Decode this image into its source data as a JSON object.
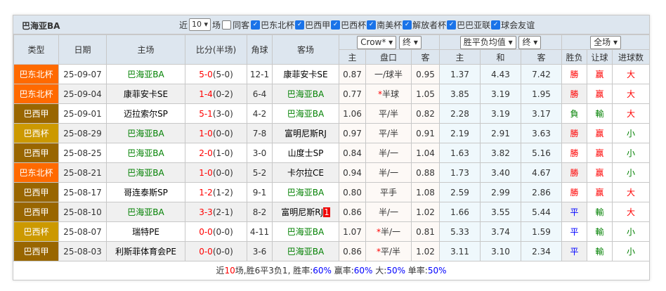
{
  "title": "巴海亚BA",
  "filters": {
    "prefix": "近",
    "count": "10",
    "suffix": "场",
    "same_venue": "同客",
    "competitions": [
      "巴东北杯",
      "巴西甲",
      "巴西杯",
      "南美杯",
      "解放者杯",
      "巴巴亚联",
      "球会友谊"
    ]
  },
  "headers": {
    "type": "类型",
    "date": "日期",
    "home": "主场",
    "score": "比分(半场)",
    "corner": "角球",
    "away": "客场",
    "company": "Crow*",
    "stage1": "终",
    "odds_type": "胜平负均值",
    "stage2": "终",
    "range": "全场",
    "h_home": "主",
    "h_line": "盘口",
    "h_away": "客",
    "o_home": "主",
    "o_draw": "和",
    "o_away": "客",
    "r_wl": "胜负",
    "r_hc": "让球",
    "r_goals": "进球数"
  },
  "colors": {
    "巴东北杯": "#ff6a00",
    "巴西甲": "#996600",
    "巴西杯": "#cc9900"
  },
  "rows": [
    {
      "type": "巴东北杯",
      "date": "25-09-07",
      "home": "巴海亚BA",
      "home_hl": true,
      "ft": "5-0",
      "ht": "(5-0)",
      "corner": "12-1",
      "away": "康菲安卡SE",
      "away_hl": false,
      "hh": "0.87",
      "hl": "一/球半",
      "ha": "0.95",
      "oh": "1.37",
      "od": "4.43",
      "oa": "7.42",
      "wl": "勝",
      "hc": "赢",
      "gl": "大"
    },
    {
      "type": "巴东北杯",
      "date": "25-09-04",
      "home": "康菲安卡SE",
      "home_hl": false,
      "ft": "1-4",
      "ht": "(0-2)",
      "corner": "6-4",
      "away": "巴海亚BA",
      "away_hl": true,
      "hh": "0.77",
      "hl_star": "*",
      "hl": "半球",
      "ha": "1.05",
      "oh": "3.85",
      "od": "3.19",
      "oa": "1.95",
      "wl": "勝",
      "hc": "赢",
      "gl": "大"
    },
    {
      "type": "巴西甲",
      "date": "25-09-01",
      "home": "迈拉索尔SP",
      "home_hl": false,
      "ft": "5-1",
      "ht": "(3-0)",
      "corner": "4-2",
      "away": "巴海亚BA",
      "away_hl": true,
      "hh": "1.06",
      "hl": "平/半",
      "ha": "0.82",
      "oh": "2.28",
      "od": "3.19",
      "oa": "3.17",
      "wl": "負",
      "hc": "輸",
      "gl": "大"
    },
    {
      "type": "巴西杯",
      "date": "25-08-29",
      "home": "巴海亚BA",
      "home_hl": true,
      "ft": "1-0",
      "ht": "(0-0)",
      "corner": "7-8",
      "away": "富明尼斯RJ",
      "away_hl": false,
      "hh": "0.97",
      "hl": "平/半",
      "ha": "0.91",
      "oh": "2.19",
      "od": "2.91",
      "oa": "3.63",
      "wl": "勝",
      "hc": "赢",
      "gl": "小"
    },
    {
      "type": "巴西甲",
      "date": "25-08-25",
      "home": "巴海亚BA",
      "home_hl": true,
      "ft": "2-0",
      "ht": "(1-0)",
      "corner": "3-0",
      "away": "山度士SP",
      "away_hl": false,
      "hh": "0.84",
      "hl": "半/一",
      "ha": "1.04",
      "oh": "1.63",
      "od": "3.82",
      "oa": "5.16",
      "wl": "勝",
      "hc": "赢",
      "gl": "小"
    },
    {
      "type": "巴东北杯",
      "date": "25-08-21",
      "home": "巴海亚BA",
      "home_hl": true,
      "ft": "1-0",
      "ht": "(0-0)",
      "corner": "5-2",
      "away": "卡尔拉CE",
      "away_hl": false,
      "hh": "0.94",
      "hl": "半/一",
      "ha": "0.88",
      "oh": "1.73",
      "od": "3.40",
      "oa": "4.67",
      "wl": "勝",
      "hc": "赢",
      "gl": "小"
    },
    {
      "type": "巴西甲",
      "date": "25-08-17",
      "home": "哥连泰斯SP",
      "home_hl": false,
      "ft": "1-2",
      "ht": "(1-2)",
      "corner": "9-1",
      "away": "巴海亚BA",
      "away_hl": true,
      "hh": "0.80",
      "hl": "平手",
      "ha": "1.08",
      "oh": "2.59",
      "od": "2.99",
      "oa": "2.86",
      "wl": "勝",
      "hc": "赢",
      "gl": "大"
    },
    {
      "type": "巴西甲",
      "date": "25-08-10",
      "home": "巴海亚BA",
      "home_hl": true,
      "ft": "3-3",
      "ht": "(2-1)",
      "corner": "8-2",
      "away": "富明尼斯RJ",
      "away_badge": "1",
      "away_hl": false,
      "hh": "0.86",
      "hl": "半/一",
      "ha": "1.02",
      "oh": "1.66",
      "od": "3.55",
      "oa": "5.44",
      "wl": "平",
      "hc": "輸",
      "gl": "大"
    },
    {
      "type": "巴西杯",
      "date": "25-08-07",
      "home": "瑞特PE",
      "home_hl": false,
      "ft": "0-0",
      "ht": "(0-0)",
      "corner": "4-11",
      "away": "巴海亚BA",
      "away_hl": true,
      "hh": "1.07",
      "hl_star": "*",
      "hl": "半/一",
      "ha": "0.81",
      "oh": "5.33",
      "od": "3.74",
      "oa": "1.59",
      "wl": "平",
      "hc": "輸",
      "gl": "小"
    },
    {
      "type": "巴西甲",
      "date": "25-08-03",
      "home": "利斯菲体育会PE",
      "home_hl": false,
      "ft": "0-0",
      "ht": "(0-0)",
      "corner": "3-6",
      "away": "巴海亚BA",
      "away_hl": true,
      "hh": "0.86",
      "hl_star": "*",
      "hl": "平/半",
      "ha": "1.02",
      "oh": "3.11",
      "od": "3.10",
      "oa": "2.34",
      "wl": "平",
      "hc": "輸",
      "gl": "小"
    }
  ],
  "summary": {
    "p1": "近",
    "n": "10",
    "p2": "场,胜",
    "w": "6",
    "p3": "平",
    "d": "3",
    "p4": "负",
    "l": "1",
    "p5": ", 胜率:",
    "wr": "60%",
    "p6": " 赢率:",
    "hr": "60%",
    "p7": " 大:",
    "br": "50%",
    "p8": " 单率:",
    "or": "50%"
  }
}
